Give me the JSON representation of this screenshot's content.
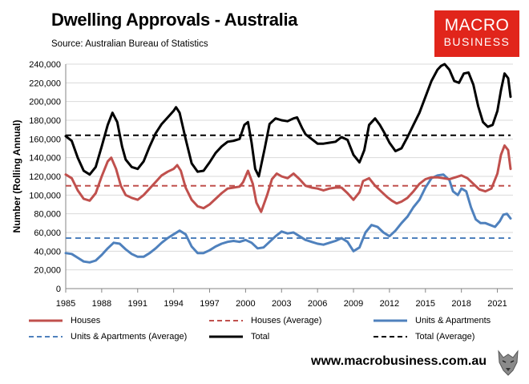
{
  "title": "Dwelling Approvals - Australia",
  "subtitle": "Source: Australian Bureau of Statistics",
  "logo": {
    "line1": "MACRO",
    "line2": "BUSINESS"
  },
  "footer_url": "www.macrobusiness.com.au",
  "colors": {
    "houses": "#c0504d",
    "units": "#4f81bd",
    "total": "#000000",
    "logo_bg": "#e1251b"
  },
  "chart_data": {
    "type": "line",
    "title": "Dwelling Approvals - Australia",
    "xlabel": "",
    "ylabel": "Number (Rolling Annual)",
    "xlim": [
      1985,
      2022.3
    ],
    "ylim": [
      0,
      240000
    ],
    "y_ticks": [
      0,
      20000,
      40000,
      60000,
      80000,
      100000,
      120000,
      140000,
      160000,
      180000,
      200000,
      220000,
      240000
    ],
    "y_tick_labels": [
      "0",
      "20,000",
      "40,000",
      "60,000",
      "80,000",
      "100,000",
      "120,000",
      "140,000",
      "160,000",
      "180,000",
      "200,000",
      "220,000",
      "240,000"
    ],
    "x_ticks": [
      1985,
      1988,
      1991,
      1994,
      1997,
      2000,
      2003,
      2006,
      2009,
      2012,
      2015,
      2018,
      2021
    ],
    "x_tick_labels": [
      "1985",
      "1988",
      "1991",
      "1994",
      "1997",
      "2000",
      "2003",
      "2006",
      "2009",
      "2012",
      "2015",
      "2018",
      "2021"
    ],
    "grid": true,
    "legend_position": "bottom",
    "series": [
      {
        "name": "Houses",
        "style": "solid",
        "color": "#c0504d",
        "x": [
          1985.0,
          1985.5,
          1986.0,
          1986.5,
          1987.0,
          1987.5,
          1988.0,
          1988.5,
          1988.8,
          1989.2,
          1989.6,
          1990.0,
          1990.5,
          1991.0,
          1991.5,
          1992.0,
          1992.5,
          1993.0,
          1993.5,
          1994.0,
          1994.3,
          1994.6,
          1995.0,
          1995.5,
          1996.0,
          1996.5,
          1997.0,
          1997.5,
          1998.0,
          1998.5,
          1999.0,
          1999.5,
          1999.8,
          2000.2,
          2000.6,
          2000.9,
          2001.3,
          2001.8,
          2002.2,
          2002.6,
          2003.0,
          2003.5,
          2004.0,
          2004.5,
          2005.0,
          2005.5,
          2006.0,
          2006.5,
          2007.0,
          2007.5,
          2008.0,
          2008.5,
          2009.0,
          2009.5,
          2009.8,
          2010.3,
          2010.8,
          2011.3,
          2011.8,
          2012.2,
          2012.6,
          2013.0,
          2013.5,
          2014.0,
          2014.5,
          2015.0,
          2015.5,
          2016.0,
          2016.5,
          2017.0,
          2017.5,
          2018.0,
          2018.5,
          2019.0,
          2019.5,
          2020.0,
          2020.5,
          2021.0,
          2021.3,
          2021.6,
          2021.9,
          2022.1
        ],
        "values": [
          122000,
          118000,
          105000,
          96000,
          94000,
          102000,
          120000,
          136000,
          140000,
          128000,
          110000,
          100000,
          97000,
          95000,
          100000,
          107000,
          114000,
          121000,
          125000,
          128000,
          132000,
          126000,
          108000,
          95000,
          88000,
          86000,
          90000,
          96000,
          102000,
          107000,
          108000,
          109000,
          114000,
          126000,
          112000,
          92000,
          82000,
          100000,
          117000,
          123000,
          120000,
          118000,
          123000,
          117000,
          110000,
          108000,
          107000,
          105000,
          107000,
          108000,
          108000,
          102000,
          95000,
          103000,
          115000,
          118000,
          110000,
          104000,
          98000,
          94000,
          91000,
          93000,
          97000,
          104000,
          112000,
          117000,
          119000,
          119000,
          118000,
          117000,
          119000,
          121000,
          118000,
          112000,
          106000,
          104000,
          107000,
          123000,
          143000,
          153000,
          148000,
          128000
        ]
      },
      {
        "name": "Houses (Average)",
        "style": "dashed",
        "color": "#c0504d",
        "x": [
          1985.0,
          2022.1
        ],
        "values": [
          110000,
          110000
        ]
      },
      {
        "name": "Units & Apartments",
        "style": "solid",
        "color": "#4f81bd",
        "x": [
          1985.0,
          1985.5,
          1986.0,
          1986.5,
          1987.0,
          1987.5,
          1988.0,
          1988.5,
          1989.0,
          1989.5,
          1990.0,
          1990.5,
          1991.0,
          1991.5,
          1992.0,
          1992.5,
          1993.0,
          1993.5,
          1994.0,
          1994.5,
          1995.0,
          1995.5,
          1996.0,
          1996.5,
          1997.0,
          1997.5,
          1998.0,
          1998.5,
          1999.0,
          1999.5,
          2000.0,
          2000.5,
          2001.0,
          2001.5,
          2002.0,
          2002.5,
          2003.0,
          2003.5,
          2004.0,
          2004.5,
          2005.0,
          2005.5,
          2006.0,
          2006.5,
          2007.0,
          2007.5,
          2008.0,
          2008.5,
          2009.0,
          2009.5,
          2010.0,
          2010.5,
          2011.0,
          2011.5,
          2012.0,
          2012.5,
          2013.0,
          2013.5,
          2014.0,
          2014.5,
          2015.0,
          2015.5,
          2016.0,
          2016.5,
          2017.0,
          2017.3,
          2017.7,
          2018.0,
          2018.4,
          2018.8,
          2019.2,
          2019.6,
          2020.0,
          2020.4,
          2020.8,
          2021.2,
          2021.5,
          2021.8,
          2022.1
        ],
        "values": [
          38000,
          37000,
          33000,
          29000,
          28000,
          30000,
          36000,
          43000,
          49000,
          48000,
          42000,
          37000,
          34000,
          34000,
          38000,
          43000,
          49000,
          54000,
          58000,
          62000,
          58000,
          45000,
          38000,
          38000,
          41000,
          45000,
          48000,
          50000,
          51000,
          50000,
          52000,
          49000,
          43000,
          44000,
          50000,
          56000,
          61000,
          59000,
          60000,
          56000,
          52000,
          50000,
          48000,
          47000,
          49000,
          51000,
          54000,
          50000,
          40000,
          44000,
          60000,
          68000,
          66000,
          60000,
          56000,
          62000,
          70000,
          77000,
          87000,
          95000,
          108000,
          118000,
          121000,
          122000,
          116000,
          104000,
          100000,
          107000,
          104000,
          87000,
          74000,
          70000,
          70000,
          68000,
          66000,
          72000,
          79000,
          80000,
          75000
        ]
      },
      {
        "name": "Units & Apartments (Average)",
        "style": "dashed",
        "color": "#4f81bd",
        "x": [
          1985.0,
          2022.1
        ],
        "values": [
          54000,
          54000
        ]
      },
      {
        "name": "Total",
        "style": "solid",
        "color": "#000000",
        "x": [
          1985.0,
          1985.5,
          1986.0,
          1986.5,
          1987.0,
          1987.5,
          1988.0,
          1988.5,
          1988.9,
          1989.3,
          1989.7,
          1990.0,
          1990.5,
          1991.0,
          1991.5,
          1992.0,
          1992.5,
          1993.0,
          1993.5,
          1994.0,
          1994.2,
          1994.5,
          1995.0,
          1995.5,
          1996.0,
          1996.5,
          1997.0,
          1997.5,
          1998.0,
          1998.5,
          1999.0,
          1999.5,
          1999.9,
          2000.2,
          2000.5,
          2000.8,
          2001.1,
          2001.6,
          2002.0,
          2002.5,
          2003.0,
          2003.5,
          2004.0,
          2004.3,
          2004.7,
          2005.0,
          2005.5,
          2006.0,
          2006.5,
          2007.0,
          2007.5,
          2008.0,
          2008.5,
          2009.0,
          2009.5,
          2009.9,
          2010.3,
          2010.8,
          2011.2,
          2011.6,
          2012.0,
          2012.5,
          2013.0,
          2013.5,
          2014.0,
          2014.5,
          2015.0,
          2015.5,
          2016.0,
          2016.3,
          2016.6,
          2017.0,
          2017.4,
          2017.8,
          2018.2,
          2018.6,
          2019.0,
          2019.4,
          2019.8,
          2020.2,
          2020.6,
          2021.0,
          2021.3,
          2021.6,
          2021.9,
          2022.1
        ],
        "values": [
          163000,
          158000,
          140000,
          126000,
          122000,
          130000,
          152000,
          175000,
          188000,
          178000,
          152000,
          138000,
          130000,
          128000,
          136000,
          152000,
          166000,
          176000,
          183000,
          190000,
          194000,
          188000,
          160000,
          134000,
          125000,
          126000,
          135000,
          145000,
          152000,
          157000,
          158000,
          160000,
          175000,
          178000,
          156000,
          128000,
          120000,
          150000,
          176000,
          182000,
          180000,
          179000,
          182000,
          183000,
          172000,
          165000,
          160000,
          155000,
          155000,
          156000,
          157000,
          162000,
          159000,
          143000,
          135000,
          148000,
          175000,
          182000,
          175000,
          166000,
          156000,
          147000,
          150000,
          162000,
          175000,
          188000,
          205000,
          222000,
          234000,
          238000,
          240000,
          234000,
          222000,
          220000,
          230000,
          231000,
          218000,
          195000,
          178000,
          173000,
          175000,
          190000,
          212000,
          230000,
          225000,
          205000
        ]
      },
      {
        "name": "Total (Average)",
        "style": "dashed",
        "color": "#000000",
        "x": [
          1985.0,
          2022.1
        ],
        "values": [
          164000,
          164000
        ]
      }
    ]
  }
}
